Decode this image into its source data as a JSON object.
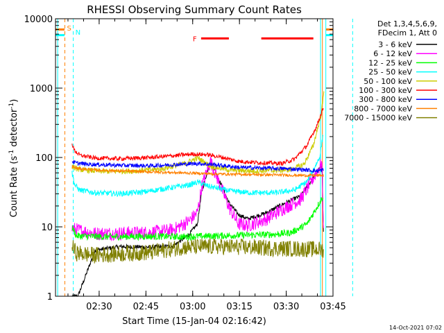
{
  "chart_data": {
    "type": "line",
    "title": "RHESSI Observing Summary Count Rates",
    "xlabel": "Start Time (15-Jan-04 02:16:42)",
    "ylabel_main": "Count Rate (s",
    "ylabel_sup1": "-1",
    "ylabel_mid": " detector",
    "ylabel_sup2": "-1",
    "ylabel_end": ")",
    "x_range_min_from_start": [
      -0.7,
      88.3
    ],
    "y_scale": "log",
    "ylim": [
      1,
      10000
    ],
    "x_ticks": [
      {
        "label": "02:30",
        "min": 13.3
      },
      {
        "label": "02:45",
        "min": 28.3
      },
      {
        "label": "03:00",
        "min": 43.3
      },
      {
        "label": "03:15",
        "min": 58.3
      },
      {
        "label": "03:30",
        "min": 73.3
      },
      {
        "label": "03:45",
        "min": 88.3
      }
    ],
    "y_ticks": [
      {
        "label": "1",
        "value": 1
      },
      {
        "label": "10",
        "value": 10
      },
      {
        "label": "100",
        "value": 100
      },
      {
        "label": "1000",
        "value": 1000
      },
      {
        "label": "10000",
        "value": 10000
      }
    ],
    "legend": {
      "header1": "Det 1,3,4,5,6,9,",
      "header2": "FDecim 1, Att 0",
      "placement": "right-outside"
    },
    "series": [
      {
        "name": "3 - 6 keV",
        "color": "#000000",
        "x": [
          4.6,
          6.5,
          12,
          20,
          30,
          37,
          42,
          44.8,
          46.2,
          49,
          55,
          58,
          61,
          67,
          72,
          78,
          84.8,
          85.3
        ],
        "y": [
          1,
          1,
          4.6,
          5.2,
          5.1,
          5.3,
          7.6,
          11,
          32,
          92,
          22,
          15,
          13,
          16,
          21,
          28,
          78,
          6
        ]
      },
      {
        "name": "6 - 12 keV",
        "color": "#ff00ff",
        "x": [
          4.6,
          6.5,
          12,
          20,
          30,
          37,
          42,
          44.8,
          46.2,
          49,
          55,
          58,
          61,
          67,
          72,
          78,
          84.8,
          85.3
        ],
        "y": [
          9.5,
          9,
          8,
          8.1,
          8.3,
          9,
          12,
          16,
          38,
          88,
          19,
          11,
          10.5,
          13,
          18,
          25,
          84,
          6
        ]
      },
      {
        "name": "12 - 25 keV",
        "color": "#00ff00",
        "x": [
          4.6,
          6,
          15,
          30,
          40,
          50,
          60,
          70,
          75,
          80,
          85.2
        ],
        "y": [
          10,
          7.4,
          7.2,
          7.3,
          7.2,
          7.4,
          7.6,
          7.8,
          8.3,
          11,
          28
        ]
      },
      {
        "name": "25 - 50 keV",
        "color": "#00ffff",
        "x": [
          4.6,
          5.5,
          7,
          12,
          20,
          28,
          35,
          42,
          45,
          48,
          55,
          62,
          70,
          76,
          80,
          84,
          85.2
        ],
        "y": [
          60,
          40,
          34,
          31,
          30,
          32,
          36,
          40,
          44,
          39,
          33,
          31,
          31,
          34,
          45,
          100,
          220
        ]
      },
      {
        "name": "50 - 100 keV",
        "color": "#cccc00",
        "x": [
          4.6,
          5.5,
          8,
          15,
          25,
          33,
          40,
          45,
          49,
          55,
          62,
          70,
          75,
          79,
          82,
          84.5,
          85.5
        ],
        "y": [
          75,
          70,
          66,
          63,
          64,
          68,
          80,
          98,
          75,
          66,
          64,
          65,
          67,
          80,
          150,
          420,
          950
        ]
      },
      {
        "name": "100 - 300 keV",
        "color": "#ff0000",
        "x": [
          4.6,
          5.2,
          7,
          12,
          20,
          30,
          37,
          43,
          48,
          53,
          58,
          65,
          72,
          76,
          80,
          83,
          85.3
        ],
        "y": [
          160,
          130,
          108,
          98,
          96,
          100,
          106,
          112,
          110,
          100,
          88,
          84,
          82,
          95,
          150,
          280,
          540
        ]
      },
      {
        "name": "300 - 800 keV",
        "color": "#0000ff",
        "x": [
          4.6,
          6,
          10,
          20,
          30,
          40,
          45,
          50,
          58,
          68,
          76,
          80,
          83,
          85.3
        ],
        "y": [
          88,
          83,
          80,
          77,
          76,
          80,
          82,
          79,
          72,
          70,
          68,
          66,
          64,
          66
        ]
      },
      {
        "name": "800 - 7000 keV",
        "color": "#ff8000",
        "x": [
          4.6,
          6,
          12,
          20,
          30,
          40,
          46,
          50,
          60,
          70,
          80,
          85.3
        ],
        "y": [
          75,
          70,
          66,
          64,
          62,
          60,
          59,
          58,
          57,
          56,
          55,
          55
        ]
      },
      {
        "name": "7000 - 15000 keV",
        "color": "#808000",
        "x": [
          4.6,
          6,
          12,
          20,
          30,
          40,
          50,
          60,
          70,
          80,
          85.3
        ],
        "y": [
          5.2,
          4.2,
          3.9,
          4.1,
          4.3,
          5.1,
          5.2,
          5.1,
          4.9,
          4.8,
          4.7
        ]
      }
    ],
    "annotations": [
      {
        "label": "S",
        "color": "#ff8000",
        "x_min": 2.3
      },
      {
        "label": "N",
        "color": "#00ffff",
        "x_min": 5.0
      }
    ],
    "vlines": [
      {
        "x_min": 0.0,
        "color": "#00ffff",
        "dash": false
      },
      {
        "x_min": 2.3,
        "color": "#ff8000",
        "dash": true
      },
      {
        "x_min": 5.0,
        "color": "#00ffff",
        "dash": true
      },
      {
        "x_min": 84.3,
        "color": "#00ffff",
        "dash": false
      },
      {
        "x_min": 84.9,
        "color": "#ff8000",
        "dash": false
      },
      {
        "x_min": 86.0,
        "color": "#00ffff",
        "dash": false
      },
      {
        "x_min": 94.6,
        "color": "#00ffff",
        "dash": true
      }
    ],
    "top_bars": [
      {
        "color": "#ff8000",
        "y": 7000,
        "x0_min": -0.7,
        "x1_min": 2.2
      },
      {
        "color": "#00ffff",
        "y": 5800,
        "x0_min": -0.7,
        "x1_min": 2.2
      },
      {
        "color": "#ff8000",
        "y": 7000,
        "x0_min": 86.0,
        "x1_min": 88.3
      },
      {
        "color": "#00ffff",
        "y": 5800,
        "x0_min": 86.0,
        "x1_min": 88.3
      }
    ],
    "flare": {
      "label": "F",
      "color": "#ff0000",
      "y": 5200,
      "segments": [
        [
          46.0,
          54.9
        ],
        [
          65.3,
          82.0
        ]
      ]
    },
    "footer_timestamp": "14-Oct-2021 07:02"
  }
}
